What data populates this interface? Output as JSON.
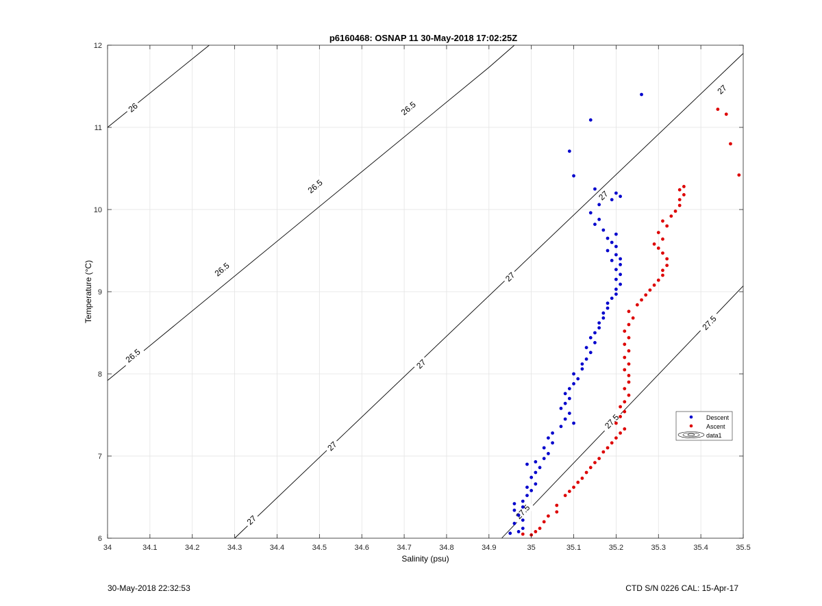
{
  "footer": {
    "left": "30-May-2018 22:32:53",
    "right": "CTD S/N 0226  CAL: 15-Apr-17"
  },
  "chart_data": {
    "type": "scatter",
    "title": "p6160468: OSNAP 11 30-May-2018 17:02:25Z",
    "xlabel": "Salinity (psu)",
    "ylabel": "Temperature (°C)",
    "xlim": [
      34,
      35.5
    ],
    "ylim": [
      6,
      12
    ],
    "xticks": [
      "34",
      "34.1",
      "34.2",
      "34.3",
      "34.4",
      "34.5",
      "34.6",
      "34.7",
      "34.8",
      "34.9",
      "35",
      "35.1",
      "35.2",
      "35.3",
      "35.4",
      "35.5"
    ],
    "yticks": [
      "6",
      "7",
      "8",
      "9",
      "10",
      "11",
      "12"
    ],
    "grid": true,
    "legend": {
      "position": "right",
      "entries": [
        "Descent",
        "Ascent",
        "data1"
      ]
    },
    "colors": {
      "descent": "#0000cc",
      "ascent": "#dd0000",
      "contour": "#000000"
    },
    "contours": [
      {
        "label": "26",
        "points": [
          [
            34,
            11.0
          ],
          [
            34.24,
            12.0
          ]
        ],
        "label_positions": [
          [
            34.06,
            11.24
          ]
        ]
      },
      {
        "label": "26.5",
        "points": [
          [
            34,
            7.92
          ],
          [
            34.9,
            11.73
          ],
          [
            34.96,
            12.0
          ]
        ],
        "label_positions": [
          [
            34.06,
            8.22
          ],
          [
            34.27,
            9.27
          ],
          [
            34.49,
            10.28
          ],
          [
            34.71,
            11.23
          ]
        ]
      },
      {
        "label": "27",
        "points": [
          [
            34.3,
            6.0
          ],
          [
            35.5,
            11.9
          ]
        ],
        "label_positions": [
          [
            34.34,
            6.22
          ],
          [
            34.53,
            7.12
          ],
          [
            34.74,
            8.12
          ],
          [
            34.95,
            9.18
          ],
          [
            35.17,
            10.17
          ],
          [
            35.45,
            11.46
          ]
        ]
      },
      {
        "label": "27.5",
        "points": [
          [
            34.93,
            6.0
          ],
          [
            35.5,
            9.07
          ]
        ],
        "label_positions": [
          [
            34.98,
            6.32
          ],
          [
            35.19,
            7.42
          ],
          [
            35.42,
            8.62
          ]
        ]
      }
    ],
    "series": [
      {
        "name": "Descent",
        "points": [
          [
            34.95,
            6.06
          ],
          [
            34.97,
            6.08
          ],
          [
            34.98,
            6.12
          ],
          [
            34.96,
            6.18
          ],
          [
            34.98,
            6.22
          ],
          [
            34.97,
            6.28
          ],
          [
            34.96,
            6.34
          ],
          [
            34.98,
            6.38
          ],
          [
            34.96,
            6.42
          ],
          [
            34.98,
            6.45
          ],
          [
            34.99,
            6.52
          ],
          [
            35.0,
            6.58
          ],
          [
            34.99,
            6.62
          ],
          [
            35.01,
            6.66
          ],
          [
            35.0,
            6.74
          ],
          [
            35.01,
            6.8
          ],
          [
            35.02,
            6.86
          ],
          [
            34.99,
            6.9
          ],
          [
            35.01,
            6.93
          ],
          [
            35.03,
            6.97
          ],
          [
            35.04,
            7.03
          ],
          [
            35.03,
            7.1
          ],
          [
            35.05,
            7.16
          ],
          [
            35.04,
            7.22
          ],
          [
            35.05,
            7.28
          ],
          [
            35.07,
            7.36
          ],
          [
            35.1,
            7.4
          ],
          [
            35.08,
            7.45
          ],
          [
            35.09,
            7.52
          ],
          [
            35.07,
            7.58
          ],
          [
            35.08,
            7.64
          ],
          [
            35.09,
            7.7
          ],
          [
            35.08,
            7.76
          ],
          [
            35.09,
            7.82
          ],
          [
            35.1,
            7.88
          ],
          [
            35.11,
            7.94
          ],
          [
            35.1,
            8.0
          ],
          [
            35.12,
            8.06
          ],
          [
            35.12,
            8.12
          ],
          [
            35.13,
            8.18
          ],
          [
            35.14,
            8.26
          ],
          [
            35.13,
            8.32
          ],
          [
            35.15,
            8.38
          ],
          [
            35.14,
            8.44
          ],
          [
            35.15,
            8.5
          ],
          [
            35.16,
            8.56
          ],
          [
            35.16,
            8.62
          ],
          [
            35.17,
            8.68
          ],
          [
            35.17,
            8.74
          ],
          [
            35.18,
            8.8
          ],
          [
            35.18,
            8.86
          ],
          [
            35.19,
            8.92
          ],
          [
            35.2,
            8.97
          ],
          [
            35.2,
            9.03
          ],
          [
            35.21,
            9.09
          ],
          [
            35.2,
            9.15
          ],
          [
            35.21,
            9.21
          ],
          [
            35.2,
            9.27
          ],
          [
            35.21,
            9.33
          ],
          [
            35.19,
            9.38
          ],
          [
            35.21,
            9.4
          ],
          [
            35.2,
            9.45
          ],
          [
            35.18,
            9.5
          ],
          [
            35.2,
            9.55
          ],
          [
            35.19,
            9.6
          ],
          [
            35.18,
            9.65
          ],
          [
            35.2,
            9.7
          ],
          [
            35.17,
            9.75
          ],
          [
            35.15,
            9.82
          ],
          [
            35.16,
            9.88
          ],
          [
            35.14,
            9.96
          ],
          [
            35.16,
            10.06
          ],
          [
            35.19,
            10.12
          ],
          [
            35.21,
            10.16
          ],
          [
            35.2,
            10.2
          ],
          [
            35.15,
            10.25
          ],
          [
            35.1,
            10.41
          ],
          [
            35.09,
            10.71
          ],
          [
            35.14,
            11.09
          ],
          [
            35.26,
            11.4
          ]
        ]
      },
      {
        "name": "Ascent",
        "points": [
          [
            34.98,
            6.05
          ],
          [
            35.0,
            6.04
          ],
          [
            35.01,
            6.08
          ],
          [
            35.02,
            6.12
          ],
          [
            35.03,
            6.2
          ],
          [
            35.04,
            6.27
          ],
          [
            35.06,
            6.32
          ],
          [
            35.06,
            6.4
          ],
          [
            35.08,
            6.52
          ],
          [
            35.09,
            6.57
          ],
          [
            35.1,
            6.62
          ],
          [
            35.11,
            6.68
          ],
          [
            35.12,
            6.73
          ],
          [
            35.13,
            6.8
          ],
          [
            35.14,
            6.86
          ],
          [
            35.15,
            6.92
          ],
          [
            35.16,
            6.97
          ],
          [
            35.17,
            7.05
          ],
          [
            35.18,
            7.1
          ],
          [
            35.19,
            7.16
          ],
          [
            35.2,
            7.22
          ],
          [
            35.21,
            7.28
          ],
          [
            35.22,
            7.33
          ],
          [
            35.2,
            7.4
          ],
          [
            35.21,
            7.48
          ],
          [
            35.22,
            7.54
          ],
          [
            35.21,
            7.6
          ],
          [
            35.22,
            7.66
          ],
          [
            35.23,
            7.74
          ],
          [
            35.22,
            7.82
          ],
          [
            35.23,
            7.9
          ],
          [
            35.23,
            7.98
          ],
          [
            35.22,
            8.05
          ],
          [
            35.23,
            8.12
          ],
          [
            35.22,
            8.2
          ],
          [
            35.23,
            8.28
          ],
          [
            35.22,
            8.36
          ],
          [
            35.23,
            8.44
          ],
          [
            35.22,
            8.52
          ],
          [
            35.23,
            8.6
          ],
          [
            35.24,
            8.68
          ],
          [
            35.23,
            8.76
          ],
          [
            35.25,
            8.84
          ],
          [
            35.26,
            8.9
          ],
          [
            35.27,
            8.96
          ],
          [
            35.28,
            9.02
          ],
          [
            35.29,
            9.08
          ],
          [
            35.3,
            9.14
          ],
          [
            35.31,
            9.2
          ],
          [
            35.31,
            9.26
          ],
          [
            35.32,
            9.32
          ],
          [
            35.32,
            9.4
          ],
          [
            35.31,
            9.47
          ],
          [
            35.3,
            9.53
          ],
          [
            35.29,
            9.58
          ],
          [
            35.31,
            9.64
          ],
          [
            35.3,
            9.72
          ],
          [
            35.32,
            9.8
          ],
          [
            35.31,
            9.86
          ],
          [
            35.33,
            9.92
          ],
          [
            35.34,
            9.98
          ],
          [
            35.35,
            10.05
          ],
          [
            35.35,
            10.12
          ],
          [
            35.36,
            10.18
          ],
          [
            35.35,
            10.24
          ],
          [
            35.36,
            10.28
          ],
          [
            35.44,
            11.22
          ],
          [
            35.46,
            11.16
          ],
          [
            35.47,
            10.8
          ],
          [
            35.49,
            10.42
          ]
        ]
      }
    ]
  }
}
